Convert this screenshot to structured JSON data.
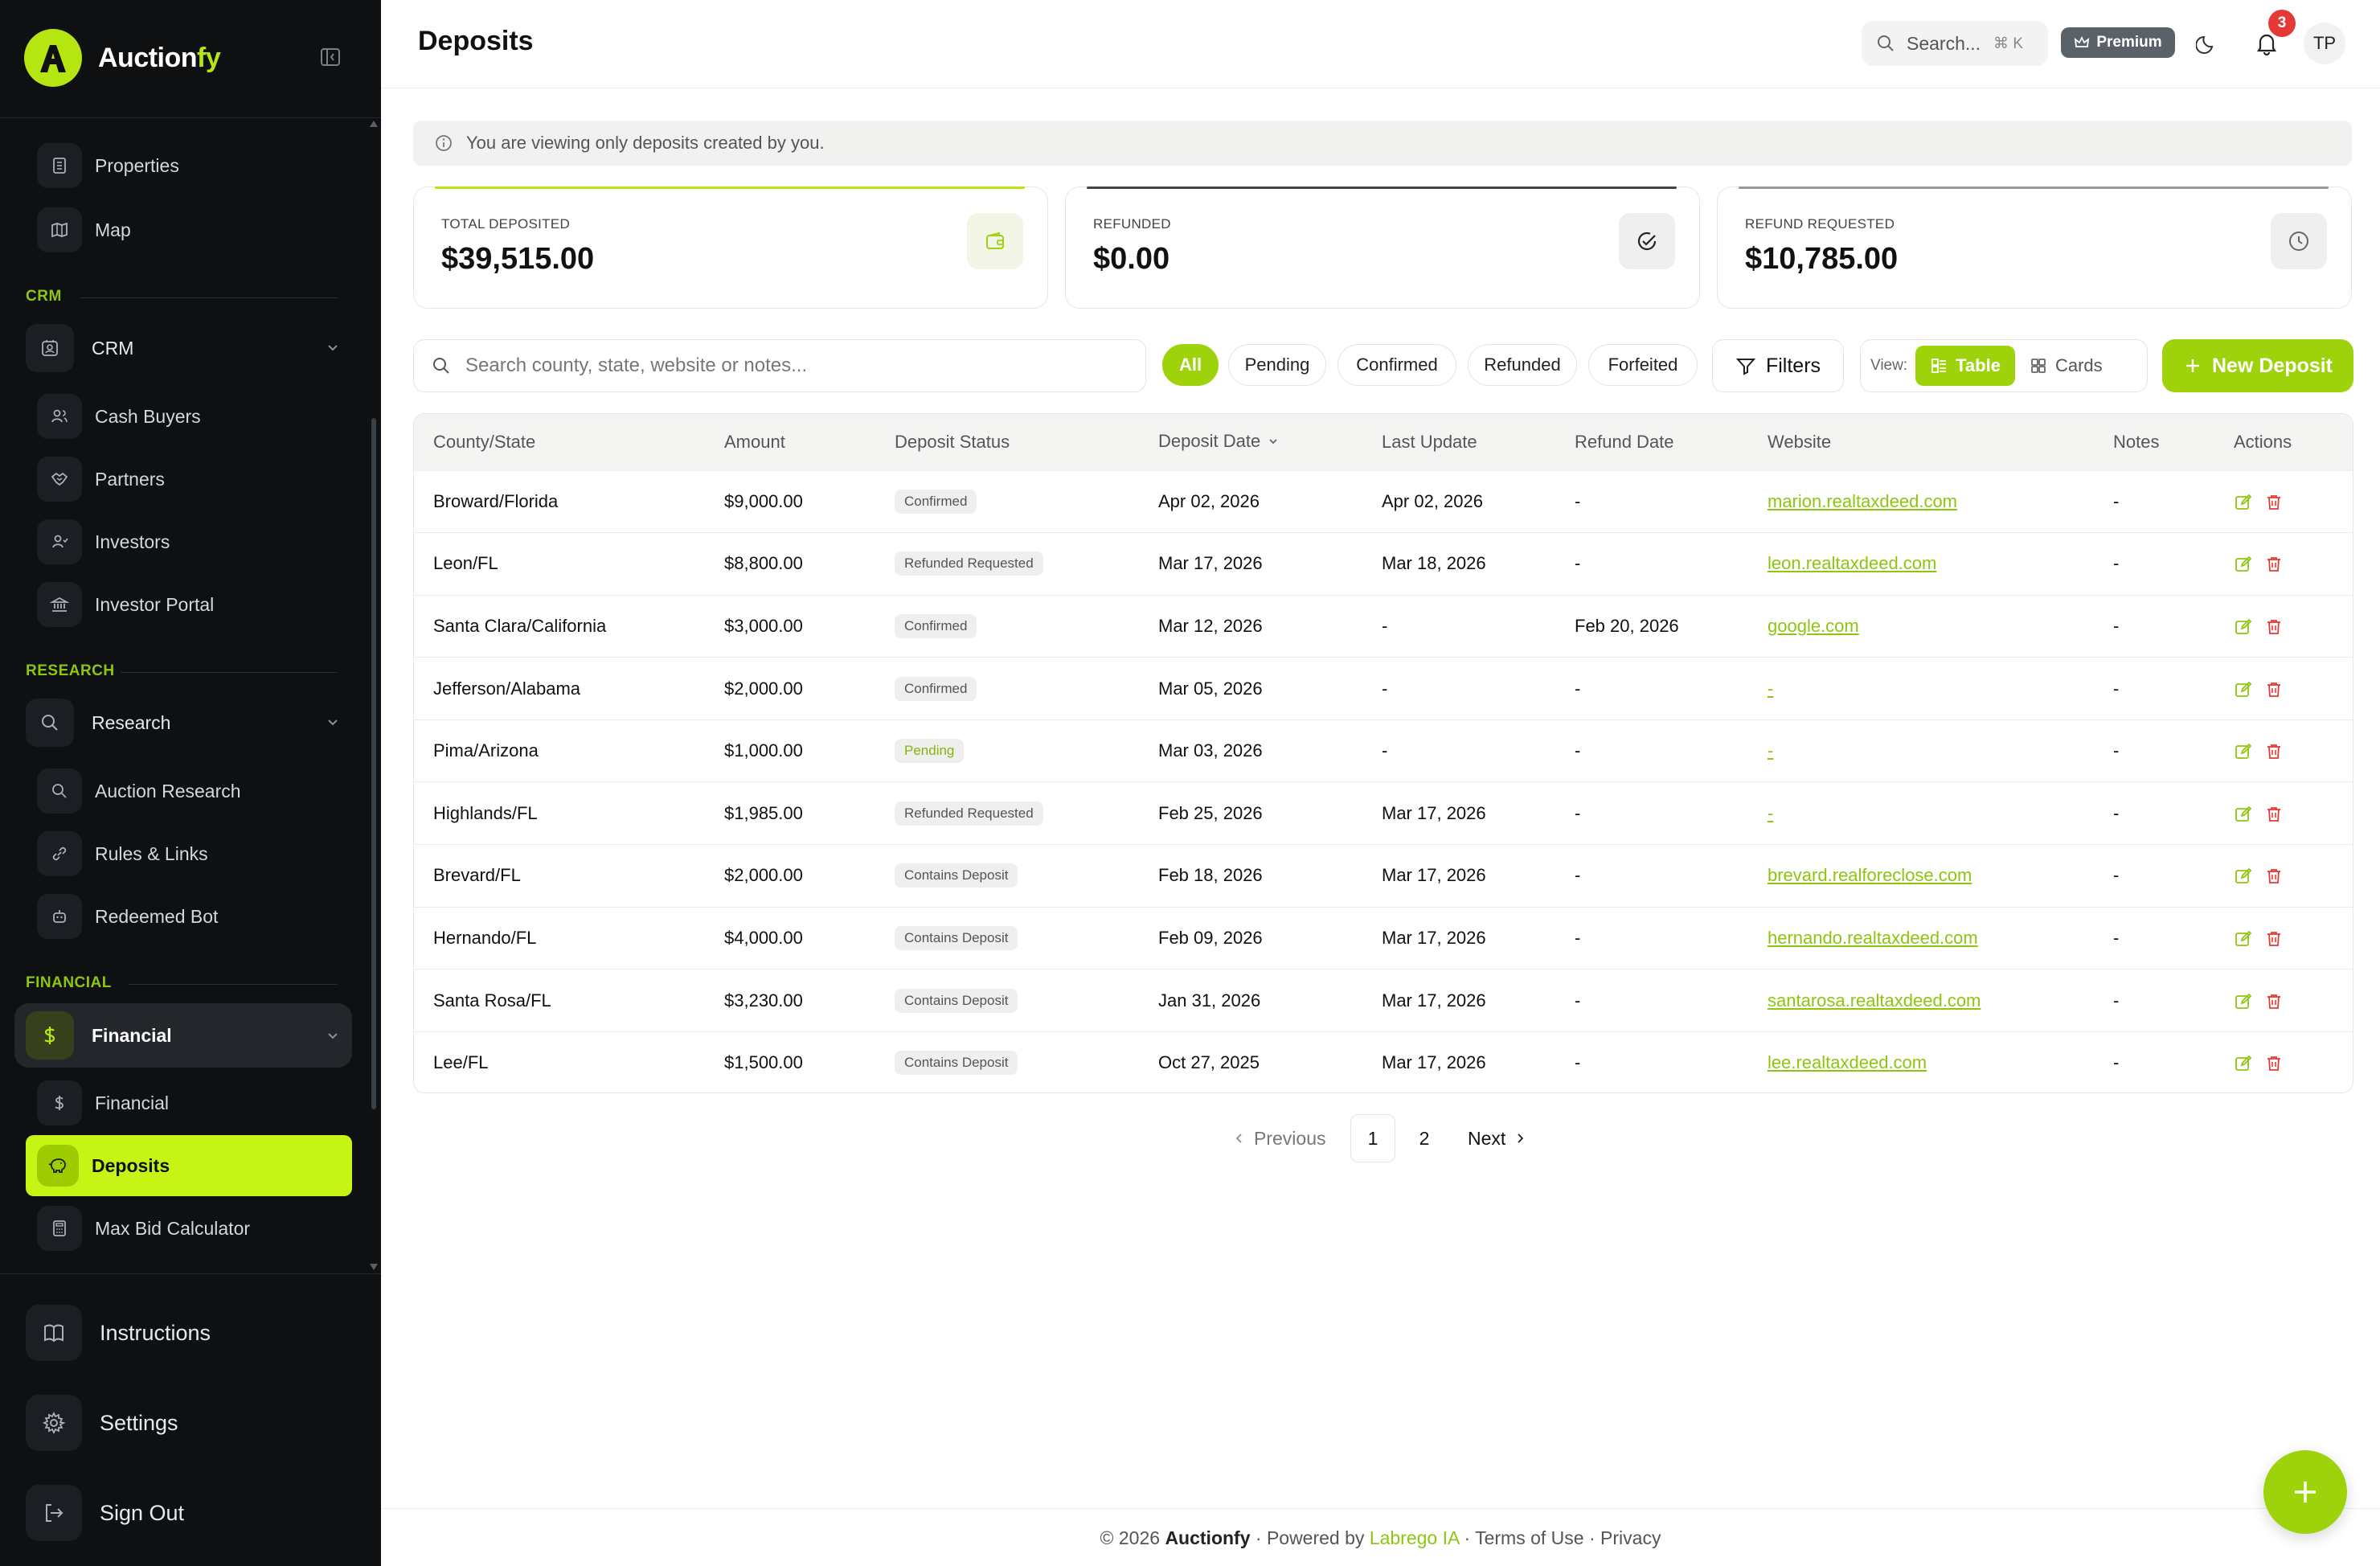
{
  "app": {
    "name_part1": "Auction",
    "name_part2": "fy"
  },
  "sidebar": {
    "items_top": [
      {
        "label": "Properties",
        "icon": "building-icon"
      },
      {
        "label": "Map",
        "icon": "map-icon"
      }
    ],
    "sections": {
      "crm": "CRM",
      "research": "RESEARCH",
      "financial": "FINANCIAL"
    },
    "groups": {
      "crm": "CRM",
      "research": "Research",
      "financial": "Financial"
    },
    "crm_items": [
      "Cash Buyers",
      "Partners",
      "Investors",
      "Investor Portal"
    ],
    "research_items": [
      "Auction Research",
      "Rules & Links",
      "Redeemed Bot"
    ],
    "financial_items": [
      "Financial",
      "Deposits",
      "Max Bid Calculator"
    ],
    "bottom": [
      "Instructions",
      "Settings",
      "Sign Out"
    ]
  },
  "header": {
    "title": "Deposits",
    "search_label": "Search...",
    "search_shortcut": "⌘ K",
    "premium_label": "Premium",
    "notification_count": "3",
    "avatar_initials": "TP"
  },
  "banner": {
    "text": "You are viewing only deposits created by you."
  },
  "stats": [
    {
      "label": "TOTAL DEPOSITED",
      "value": "$39,515.00",
      "icon": "wallet-icon",
      "accent": "#b6e612"
    },
    {
      "label": "REFUNDED",
      "value": "$0.00",
      "icon": "check-circle-icon",
      "accent": "#444444"
    },
    {
      "label": "REFUND REQUESTED",
      "value": "$10,785.00",
      "icon": "clock-icon",
      "accent": "#888888"
    }
  ],
  "toolbar": {
    "search_placeholder": "Search county, state, website or notes...",
    "chips": [
      "All",
      "Pending",
      "Confirmed",
      "Refunded",
      "Forfeited"
    ],
    "filters_label": "Filters",
    "view_label": "View:",
    "view_table": "Table",
    "view_cards": "Cards",
    "new_label": "New Deposit"
  },
  "table": {
    "columns": [
      "County/State",
      "Amount",
      "Deposit Status",
      "Deposit Date",
      "Last Update",
      "Refund Date",
      "Website",
      "Notes",
      "Actions"
    ],
    "rows": [
      {
        "county": "Broward/Florida",
        "amount": "$9,000.00",
        "status": "Confirmed",
        "deposit_date": "Apr 02, 2026",
        "last_update": "Apr 02, 2026",
        "refund_date": "-",
        "website": "marion.realtaxdeed.com",
        "notes": "-"
      },
      {
        "county": "Leon/FL",
        "amount": "$8,800.00",
        "status": "Refunded Requested",
        "deposit_date": "Mar 17, 2026",
        "last_update": "Mar 18, 2026",
        "refund_date": "-",
        "website": "leon.realtaxdeed.com",
        "notes": "-"
      },
      {
        "county": "Santa Clara/California",
        "amount": "$3,000.00",
        "status": "Confirmed",
        "deposit_date": "Mar 12, 2026",
        "last_update": "-",
        "refund_date": "Feb 20, 2026",
        "website": "google.com",
        "notes": "-"
      },
      {
        "county": "Jefferson/Alabama",
        "amount": "$2,000.00",
        "status": "Confirmed",
        "deposit_date": "Mar 05, 2026",
        "last_update": "-",
        "refund_date": "-",
        "website": "-",
        "notes": "-"
      },
      {
        "county": "Pima/Arizona",
        "amount": "$1,000.00",
        "status": "Pending",
        "deposit_date": "Mar 03, 2026",
        "last_update": "-",
        "refund_date": "-",
        "website": "-",
        "notes": "-"
      },
      {
        "county": "Highlands/FL",
        "amount": "$1,985.00",
        "status": "Refunded Requested",
        "deposit_date": "Feb 25, 2026",
        "last_update": "Mar 17, 2026",
        "refund_date": "-",
        "website": "-",
        "notes": "-"
      },
      {
        "county": "Brevard/FL",
        "amount": "$2,000.00",
        "status": "Contains Deposit",
        "deposit_date": "Feb 18, 2026",
        "last_update": "Mar 17, 2026",
        "refund_date": "-",
        "website": "brevard.realforeclose.com",
        "notes": "-"
      },
      {
        "county": "Hernando/FL",
        "amount": "$4,000.00",
        "status": "Contains Deposit",
        "deposit_date": "Feb 09, 2026",
        "last_update": "Mar 17, 2026",
        "refund_date": "-",
        "website": "hernando.realtaxdeed.com",
        "notes": "-"
      },
      {
        "county": "Santa Rosa/FL",
        "amount": "$3,230.00",
        "status": "Contains Deposit",
        "deposit_date": "Jan 31, 2026",
        "last_update": "Mar 17, 2026",
        "refund_date": "-",
        "website": "santarosa.realtaxdeed.com",
        "notes": "-"
      },
      {
        "county": "Lee/FL",
        "amount": "$1,500.00",
        "status": "Contains Deposit",
        "deposit_date": "Oct 27, 2025",
        "last_update": "Mar 17, 2026",
        "refund_date": "-",
        "website": "lee.realtaxdeed.com",
        "notes": "-"
      }
    ]
  },
  "pagination": {
    "previous": "Previous",
    "pages": [
      "1",
      "2"
    ],
    "current": "1",
    "next": "Next"
  },
  "footer": {
    "copyright": "© 2026",
    "brand": "Auctionfy",
    "powered_by": "· Powered by",
    "powered_name": "Labrego IA",
    "terms": "Terms of Use",
    "privacy": "Privacy",
    "sep": "·"
  },
  "colors": {
    "accent": "#9ed20a",
    "accent_bright": "#c6f414",
    "sidebar_bg": "#0e1012",
    "danger": "#e53935"
  }
}
